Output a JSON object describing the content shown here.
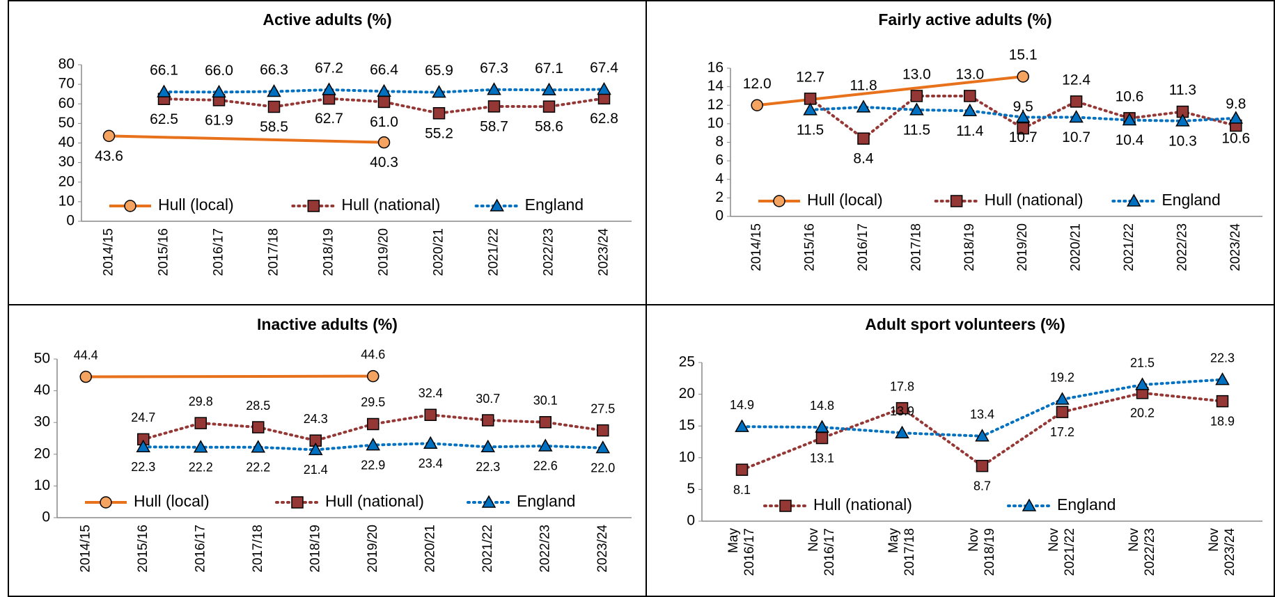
{
  "chart_data": [
    {
      "type": "line",
      "title": "Active adults (%)",
      "categories": [
        "2014/15",
        "2015/16",
        "2016/17",
        "2017/18",
        "2018/19",
        "2019/20",
        "2020/21",
        "2021/22",
        "2022/23",
        "2023/24"
      ],
      "ylim": [
        0,
        80
      ],
      "yticks": [
        0,
        10,
        20,
        30,
        40,
        50,
        60,
        70,
        80
      ],
      "legend": "bottom",
      "series": [
        {
          "name": "Hull (local)",
          "color": "#E8721C",
          "line": "solid",
          "marker": "circle",
          "connect_gaps": true,
          "values": [
            43.6,
            null,
            null,
            null,
            null,
            40.3,
            null,
            null,
            null,
            null
          ],
          "value_labels": [
            "43.6",
            null,
            null,
            null,
            null,
            "40.3",
            null,
            null,
            null,
            null
          ]
        },
        {
          "name": "Hull (national)",
          "color": "#953735",
          "line": "dotted",
          "marker": "square",
          "values": [
            null,
            62.5,
            61.9,
            58.5,
            62.7,
            61.0,
            55.2,
            58.7,
            58.6,
            62.8
          ],
          "value_labels": [
            null,
            "62.5",
            "61.9",
            "58.5",
            "62.7",
            "61.0",
            "55.2",
            "58.7",
            "58.6",
            "62.8"
          ]
        },
        {
          "name": "England",
          "color": "#0070C0",
          "label_color": "#3F66A3",
          "line": "dotted",
          "marker": "triangle",
          "values": [
            null,
            66.1,
            66.0,
            66.3,
            67.2,
            66.4,
            65.9,
            67.3,
            67.1,
            67.4
          ],
          "value_labels": [
            null,
            "66.1",
            "66.0",
            "66.3",
            "67.2",
            "66.4",
            "65.9",
            "67.3",
            "67.1",
            "67.4"
          ]
        }
      ]
    },
    {
      "type": "line",
      "title": "Fairly active adults (%)",
      "categories": [
        "2014/15",
        "2015/16",
        "2016/17",
        "2017/18",
        "2018/19",
        "2019/20",
        "2020/21",
        "2021/22",
        "2022/23",
        "2023/24"
      ],
      "ylim": [
        0,
        16
      ],
      "yticks": [
        0,
        2,
        4,
        6,
        8,
        10,
        12,
        14,
        16
      ],
      "legend": "bottom",
      "series": [
        {
          "name": "Hull (local)",
          "color": "#E8721C",
          "line": "solid",
          "marker": "circle",
          "connect_gaps": true,
          "values": [
            12.0,
            null,
            null,
            null,
            null,
            15.1,
            null,
            null,
            null,
            null
          ],
          "value_labels": [
            "12.0",
            null,
            null,
            null,
            null,
            "15.1",
            null,
            null,
            null,
            null
          ]
        },
        {
          "name": "Hull (national)",
          "color": "#953735",
          "line": "dotted",
          "marker": "square",
          "values": [
            null,
            12.7,
            8.4,
            13.0,
            13.0,
            9.5,
            12.4,
            10.6,
            11.3,
            9.8
          ],
          "value_labels": [
            null,
            "12.7",
            "8.4",
            "13.0",
            "13.0",
            "9.5",
            "12.4",
            "10.6",
            "11.3",
            "9.8"
          ]
        },
        {
          "name": "England",
          "color": "#0070C0",
          "line": "dotted",
          "marker": "triangle",
          "values": [
            null,
            11.5,
            11.8,
            11.5,
            11.4,
            10.7,
            10.7,
            10.4,
            10.3,
            10.6
          ],
          "value_labels": [
            null,
            "11.5",
            "11.8",
            "11.5",
            "11.4",
            "10.7",
            "10.7",
            "10.4",
            "10.3",
            "10.6"
          ]
        }
      ]
    },
    {
      "type": "line",
      "title": "Inactive adults (%)",
      "categories": [
        "2014/15",
        "2015/16",
        "2016/17",
        "2017/18",
        "2018/19",
        "2019/20",
        "2020/21",
        "2021/22",
        "2022/23",
        "2023/24"
      ],
      "ylim": [
        0,
        50
      ],
      "yticks": [
        0,
        10,
        20,
        30,
        40,
        50
      ],
      "legend": "bottom",
      "series": [
        {
          "name": "Hull (local)",
          "color": "#E8721C",
          "line": "solid",
          "marker": "circle",
          "connect_gaps": true,
          "values": [
            44.4,
            null,
            null,
            null,
            null,
            44.6,
            null,
            null,
            null,
            null
          ],
          "value_labels": [
            "44.4",
            null,
            null,
            null,
            null,
            "44.6",
            null,
            null,
            null,
            null
          ]
        },
        {
          "name": "Hull (national)",
          "color": "#953735",
          "line": "dotted",
          "marker": "square",
          "values": [
            null,
            24.7,
            29.8,
            28.5,
            24.3,
            29.5,
            32.4,
            30.7,
            30.1,
            27.5
          ],
          "value_labels": [
            null,
            "24.7",
            "29.8",
            "28.5",
            "24.3",
            "29.5",
            "32.4",
            "30.7",
            "30.1",
            "27.5"
          ]
        },
        {
          "name": "England",
          "color": "#0070C0",
          "line": "dotted",
          "marker": "triangle",
          "values": [
            null,
            22.3,
            22.2,
            22.2,
            21.4,
            22.9,
            23.4,
            22.3,
            22.6,
            22.0
          ],
          "value_labels": [
            null,
            "22.3",
            "22.2",
            "22.2",
            "21.4",
            "22.9",
            "23.4",
            "22.3",
            "22.6",
            "22.0"
          ]
        }
      ]
    },
    {
      "type": "line",
      "title": "Adult sport volunteers (%)",
      "categories": [
        [
          "May",
          "2016/17"
        ],
        [
          "Nov",
          "2016/17"
        ],
        [
          "May",
          "2017/18"
        ],
        [
          "Nov",
          "2018/19"
        ],
        [
          "Nov",
          "2021/22"
        ],
        [
          "Nov",
          "2022/23"
        ],
        [
          "Nov",
          "2023/24"
        ]
      ],
      "ylim": [
        0,
        25
      ],
      "yticks": [
        0,
        5,
        10,
        15,
        20,
        25
      ],
      "legend": "bottom",
      "series": [
        {
          "name": "Hull (national)",
          "color": "#953735",
          "line": "dotted",
          "marker": "square",
          "values": [
            8.1,
            13.1,
            17.8,
            8.7,
            17.2,
            20.2,
            18.9
          ]
        },
        {
          "name": "England",
          "color": "#0070C0",
          "line": "dotted",
          "marker": "triangle",
          "values": [
            14.9,
            14.8,
            13.9,
            13.4,
            19.2,
            21.5,
            22.3
          ]
        }
      ]
    }
  ]
}
